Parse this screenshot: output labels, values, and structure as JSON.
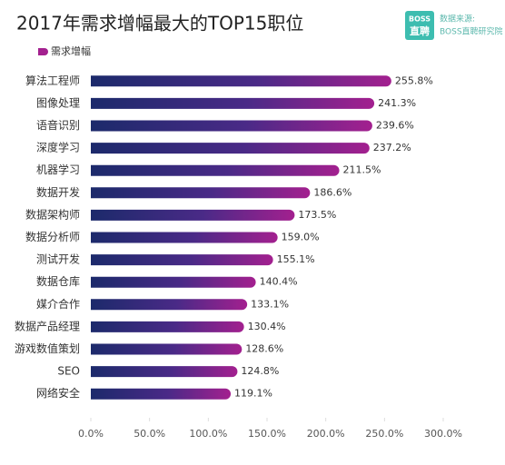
{
  "chart_data": {
    "type": "barh",
    "title": "2017年需求增幅最大的TOP15职位",
    "logo": [
      "BOSS",
      "直聘"
    ],
    "source": [
      "数据来源:",
      "BOSS直聘研究院"
    ],
    "categories": [
      "算法工程师",
      "图像处理",
      "语音识别",
      "深度学习",
      "机器学习",
      "数据开发",
      "数据架构师",
      "数据分析师",
      "测试开发",
      "数据仓库",
      "媒介合作",
      "数据产品经理",
      "游戏数值策划",
      "SEO",
      "网络安全"
    ],
    "series": [
      {
        "name": "需求增幅",
        "color": "#a3208f",
        "values": [
          255.8,
          241.3,
          239.6,
          237.2,
          211.5,
          186.6,
          173.5,
          159.0,
          155.1,
          140.4,
          133.1,
          130.4,
          128.6,
          124.8,
          119.1
        ],
        "value_labels": [
          "255.8%",
          "241.3%",
          "239.6%",
          "237.2%",
          "211.5%",
          "186.6%",
          "173.5%",
          "159.0%",
          "155.1%",
          "140.4%",
          "133.1%",
          "130.4%",
          "128.6%",
          "124.8%",
          "119.1%"
        ]
      }
    ],
    "xlim": [
      0,
      300
    ],
    "xticks": [
      {
        "value": 0,
        "label": "0.0%"
      },
      {
        "value": 50,
        "label": "50.0%"
      },
      {
        "value": 100,
        "label": "100.0%"
      },
      {
        "value": 150,
        "label": "150.0%"
      },
      {
        "value": 200,
        "label": "200.0%"
      },
      {
        "value": 250,
        "label": "250.0%"
      },
      {
        "value": 300,
        "label": "300.0%"
      }
    ],
    "legend": "top-left"
  }
}
